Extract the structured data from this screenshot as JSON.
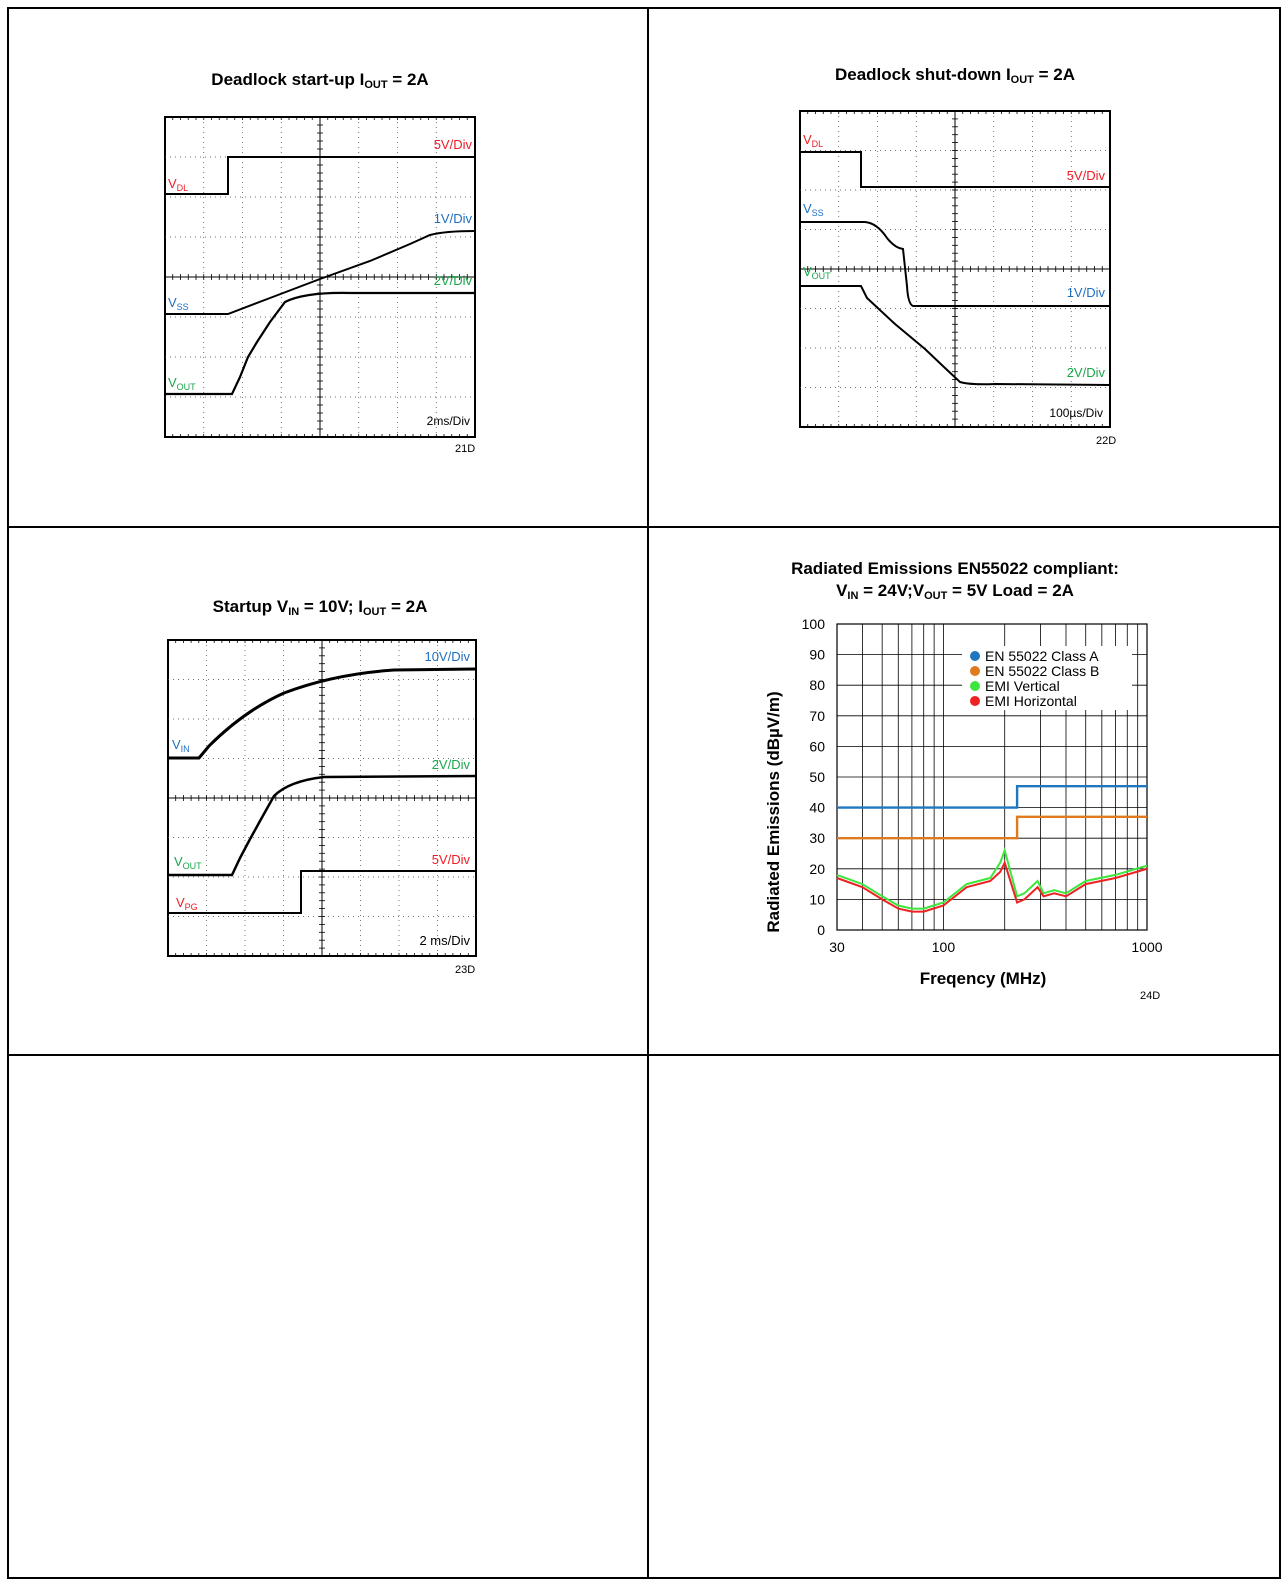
{
  "colors": {
    "red": "#ee1c24",
    "blue": "#1f6fc0",
    "green": "#1aa64b",
    "classA": "#1f77c0",
    "classB": "#e07a1f",
    "emiV": "#3ce63c",
    "emiH": "#ee2222"
  },
  "figures": {
    "f21": {
      "title_main": "Deadlock start-up  I",
      "title_sub": "OUT",
      "title_tail": " = 2A",
      "id": "21D",
      "labels": {
        "vdl": "V",
        "vdl_sub": "DL",
        "vss": "V",
        "vss_sub": "SS",
        "vout": "V",
        "vout_sub": "OUT",
        "scale_red": "5V/Div",
        "scale_blue": "1V/Div",
        "scale_green": "2V/Div",
        "time": "2ms/Div"
      }
    },
    "f22": {
      "title_main": "Deadlock shut-down  I",
      "title_sub": "OUT",
      "title_tail": " = 2A",
      "id": "22D",
      "labels": {
        "vdl": "V",
        "vdl_sub": "DL",
        "vss": "V",
        "vss_sub": "SS",
        "vout": "V",
        "vout_sub": "OUT",
        "scale_red": "5V/Div",
        "scale_blue": "1V/Div",
        "scale_green": "2V/Div",
        "time": "100µs/Div"
      }
    },
    "f23": {
      "title_a": "Startup V",
      "title_a_sub": "IN",
      "title_b": " = 10V;  I",
      "title_b_sub": "OUT",
      "title_c": " = 2A",
      "id": "23D",
      "labels": {
        "vin": "V",
        "vin_sub": "IN",
        "vout": "V",
        "vout_sub": "OUT",
        "vpg": "V",
        "vpg_sub": "PG",
        "scale_blue": "10V/Div",
        "scale_green": "2V/Div",
        "scale_red": "5V/Div",
        "time": "2 ms/Div"
      }
    },
    "f24": {
      "title_line1": "Radiated Emissions EN55022 compliant:",
      "t2a": "V",
      "t2a_sub": "IN",
      "t2b": " = 24V;V",
      "t2b_sub": "OUT",
      "t2c": " = 5V Load = 2A",
      "id": "24D"
    }
  },
  "chart_data": [
    {
      "type": "line",
      "title": "Deadlock start-up  IOUT = 2A",
      "time_per_div": "2ms/Div",
      "series": [
        {
          "name": "VDL",
          "scale": "5V/Div"
        },
        {
          "name": "VSS",
          "scale": "1V/Div"
        },
        {
          "name": "VOUT",
          "scale": "2V/Div"
        }
      ]
    },
    {
      "type": "line",
      "title": "Deadlock shut-down  IOUT = 2A",
      "time_per_div": "100µs/Div",
      "series": [
        {
          "name": "VDL",
          "scale": "5V/Div"
        },
        {
          "name": "VSS",
          "scale": "1V/Div"
        },
        {
          "name": "VOUT",
          "scale": "2V/Div"
        }
      ]
    },
    {
      "type": "line",
      "title": "Startup VIN = 10V;  IOUT = 2A",
      "time_per_div": "2 ms/Div",
      "series": [
        {
          "name": "VIN",
          "scale": "10V/Div"
        },
        {
          "name": "VOUT",
          "scale": "2V/Div"
        },
        {
          "name": "VPG",
          "scale": "5V/Div"
        }
      ]
    },
    {
      "type": "line",
      "title": "Radiated Emissions EN55022 compliant: VIN = 24V;VOUT = 5V Load = 2A",
      "xlabel": "Freqency (MHz)",
      "ylabel": "Radiated Emissions (dBµV/m)",
      "xscale": "log",
      "xlim": [
        30,
        1000
      ],
      "ylim": [
        0,
        100
      ],
      "yticks": [
        0,
        10,
        20,
        30,
        40,
        50,
        60,
        70,
        80,
        90,
        100
      ],
      "xtick_labels": [
        "30",
        "100",
        "1000"
      ],
      "legend": "top-right",
      "series": [
        {
          "name": "EN 55022 Class A",
          "x": [
            30,
            230,
            230,
            1000
          ],
          "y": [
            40,
            40,
            47,
            47
          ]
        },
        {
          "name": "EN 55022 Class B",
          "x": [
            30,
            230,
            230,
            1000
          ],
          "y": [
            30,
            30,
            37,
            37
          ]
        },
        {
          "name": "EMI Vertical",
          "x": [
            30,
            40,
            50,
            60,
            70,
            80,
            100,
            130,
            170,
            190,
            200,
            230,
            250,
            290,
            310,
            350,
            400,
            500,
            700,
            1000
          ],
          "y": [
            18,
            15,
            11,
            8,
            7,
            7,
            9,
            15,
            17,
            22,
            26,
            11,
            12,
            16,
            12,
            13,
            12,
            16,
            18,
            21
          ]
        },
        {
          "name": "EMI Horizontal",
          "x": [
            30,
            40,
            50,
            60,
            70,
            80,
            100,
            130,
            170,
            190,
            200,
            230,
            250,
            290,
            310,
            350,
            400,
            500,
            700,
            1000
          ],
          "y": [
            17,
            14,
            10,
            7,
            6,
            6,
            8,
            14,
            16,
            19,
            22,
            9,
            10,
            14,
            11,
            12,
            11,
            15,
            17,
            20
          ]
        }
      ]
    }
  ]
}
